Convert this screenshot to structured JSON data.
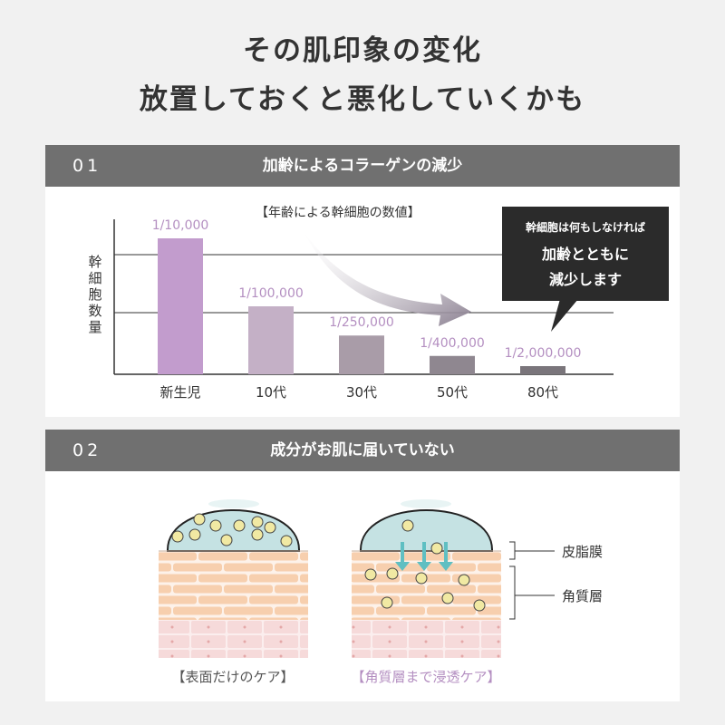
{
  "headline": {
    "line1": "その肌印象の変化",
    "line2": "放置しておくと悪化していくかも"
  },
  "section1": {
    "number": "01",
    "title": "加齢によるコラーゲンの減少",
    "chart_title": "【年齢による幹細胞の数値】",
    "callout": {
      "line1": "幹細胞は何もしなければ",
      "line2": "加齢とともに",
      "line3": "減少します"
    }
  },
  "section2": {
    "number": "02",
    "title": "成分がお肌に届いていない",
    "layer_top": "皮脂膜",
    "layer_bottom": "角質層",
    "caption_left": "【表面だけのケア】",
    "caption_right": "【角質層まで浸透ケア】"
  },
  "colors": {
    "accent": "#b48fc1",
    "bar_dark": "#707070",
    "skin": "#f7cfae",
    "droplet": "#c5e2e3",
    "arrow": "#5fbfc2"
  },
  "chart_data": {
    "type": "bar",
    "title": "【年齢による幹細胞の数値】",
    "ylabel": "幹細胞数量",
    "categories": [
      "新生児",
      "10代",
      "30代",
      "50代",
      "80代"
    ],
    "values": [
      100,
      50,
      28.5,
      13.5,
      6
    ],
    "value_labels": [
      "1/10,000",
      "1/100,000",
      "1/250,000",
      "1/400,000",
      "1/2,000,000"
    ],
    "bar_colors": [
      "#c29ccd",
      "#c4b0c6",
      "#a99ca8",
      "#8f8790",
      "#7a757b"
    ],
    "grid": true
  }
}
